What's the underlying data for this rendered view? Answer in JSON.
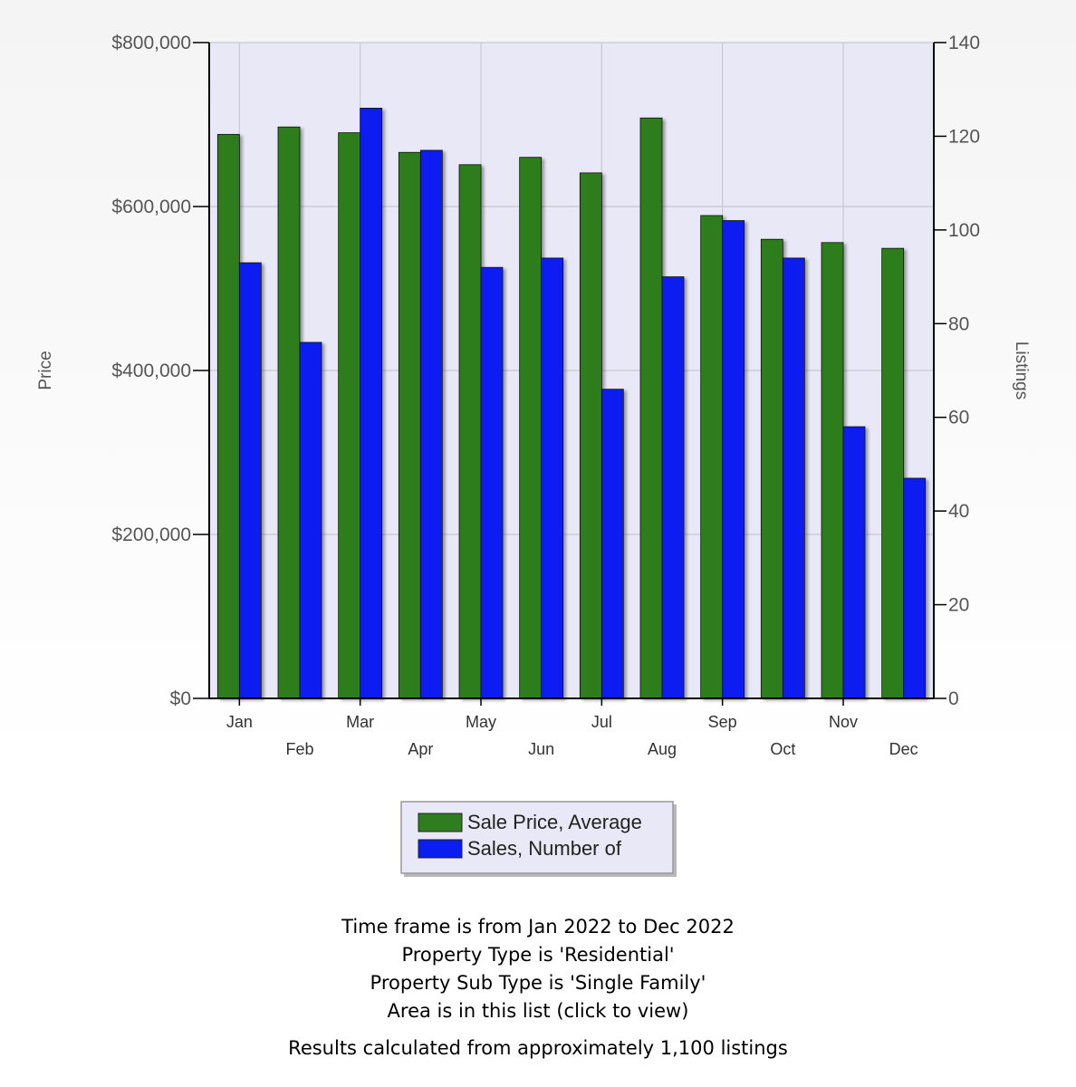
{
  "chart_data": {
    "type": "bar",
    "categories": [
      "Jan",
      "Feb",
      "Mar",
      "Apr",
      "May",
      "Jun",
      "Jul",
      "Aug",
      "Sep",
      "Oct",
      "Nov",
      "Dec"
    ],
    "series": [
      {
        "name": "Sale Price, Average",
        "axis": "left",
        "color": "#2e7d1e",
        "values": [
          688000,
          697000,
          690000,
          666000,
          651000,
          660000,
          641000,
          708000,
          589000,
          560000,
          556000,
          549000
        ]
      },
      {
        "name": "Sales, Number of",
        "axis": "right",
        "color": "#0a1ef0",
        "values": [
          93,
          76,
          126,
          117,
          92,
          94,
          66,
          90,
          102,
          94,
          58,
          47
        ]
      }
    ],
    "ylabel": "Price",
    "y2label": "Listings",
    "ylim": [
      0,
      800000
    ],
    "y2lim": [
      0,
      140
    ],
    "yticks": [
      "$0",
      "$200,000",
      "$400,000",
      "$600,000",
      "$800,000"
    ],
    "y2ticks": [
      "0",
      "20",
      "40",
      "60",
      "80",
      "100",
      "120",
      "140"
    ],
    "grid": true,
    "legend_position": "bottom-center",
    "background_color": "#e8e8f6"
  },
  "footer": {
    "lines": [
      "Time frame is from Jan 2022 to Dec 2022",
      "Property Type is 'Residential'",
      "Property Sub Type is 'Single Family'",
      "Area is in this list (click to view)"
    ],
    "results": "Results calculated from approximately 1,100 listings"
  }
}
